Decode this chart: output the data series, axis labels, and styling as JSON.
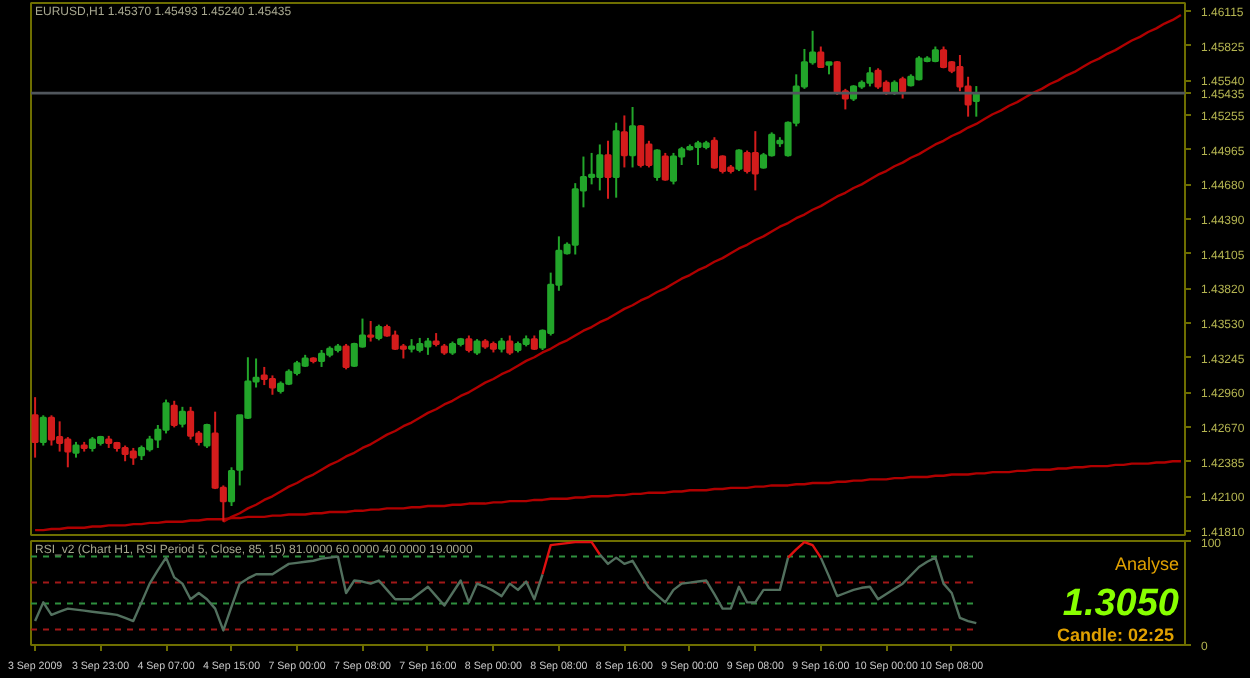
{
  "chart_data": [
    {
      "type": "candlestick",
      "title": "EURUSD,H1  1.45370 1.45493 1.45240 1.45435",
      "categories": [
        null,
        null,
        null,
        null,
        null,
        null,
        null,
        null,
        null,
        null,
        null,
        null,
        null,
        null,
        null,
        null,
        null,
        null,
        null,
        null,
        null,
        null,
        null,
        null,
        null,
        null,
        null,
        null,
        null,
        null,
        null,
        null,
        null,
        null,
        null,
        null,
        null,
        null,
        null,
        null,
        null,
        null,
        null,
        null,
        null,
        null,
        null,
        null,
        null,
        null,
        null,
        null,
        null,
        null,
        null,
        null,
        null,
        null,
        null,
        null,
        null,
        null,
        null,
        null,
        null,
        null,
        null,
        null,
        null,
        null,
        null,
        null,
        null,
        null,
        null,
        null,
        null,
        null,
        null,
        null,
        null,
        null,
        null,
        null,
        null,
        null,
        null,
        null,
        null,
        null,
        null,
        null,
        null,
        null,
        null,
        null,
        null,
        null,
        null,
        null,
        null,
        null,
        null,
        null,
        null,
        null,
        null,
        null,
        null,
        null,
        null,
        null,
        null,
        null,
        null,
        null,
        null,
        null,
        null,
        null,
        null,
        null,
        null,
        null,
        null,
        null,
        null,
        null,
        null,
        null,
        null,
        null,
        null,
        null,
        null,
        null,
        null,
        null,
        null,
        null,
        null
      ],
      "ohlc": [
        [
          1.4277,
          1.4292,
          1.4242,
          1.4255
        ],
        [
          1.4255,
          1.4277,
          1.4252,
          1.4275
        ],
        [
          1.4275,
          1.4277,
          1.4252,
          1.4257
        ],
        [
          1.4259,
          1.4272,
          1.4247,
          1.4254
        ],
        [
          1.4257,
          1.4259,
          1.4234,
          1.4247
        ],
        [
          1.4246,
          1.4255,
          1.4242,
          1.4252
        ],
        [
          1.4252,
          1.4255,
          1.4247,
          1.425
        ],
        [
          1.425,
          1.4259,
          1.4247,
          1.4257
        ],
        [
          1.4254,
          1.426,
          1.4252,
          1.4259
        ],
        [
          1.4257,
          1.426,
          1.425,
          1.4254
        ],
        [
          1.4254,
          1.4255,
          1.4247,
          1.425
        ],
        [
          1.425,
          1.4252,
          1.4239,
          1.4245
        ],
        [
          1.4247,
          1.425,
          1.4236,
          1.4242
        ],
        [
          1.4244,
          1.4252,
          1.424,
          1.425
        ],
        [
          1.4249,
          1.426,
          1.4247,
          1.4257
        ],
        [
          1.4257,
          1.4269,
          1.425,
          1.4265
        ],
        [
          1.4265,
          1.429,
          1.4262,
          1.4287
        ],
        [
          1.4285,
          1.4289,
          1.4267,
          1.4269
        ],
        [
          1.427,
          1.4284,
          1.4267,
          1.428
        ],
        [
          1.428,
          1.4284,
          1.4257,
          1.426
        ],
        [
          1.4262,
          1.4264,
          1.4252,
          1.4255
        ],
        [
          1.4252,
          1.427,
          1.425,
          1.4269
        ],
        [
          1.4262,
          1.428,
          1.4216,
          1.4217
        ],
        [
          1.4217,
          1.4219,
          1.4189,
          1.4206
        ],
        [
          1.4206,
          1.4234,
          1.4202,
          1.4231
        ],
        [
          1.4232,
          1.4277,
          1.4219,
          1.4277
        ],
        [
          1.4275,
          1.4325,
          1.4274,
          1.4305
        ],
        [
          1.4305,
          1.4324,
          1.43,
          1.4308
        ],
        [
          1.431,
          1.4317,
          1.4302,
          1.4307
        ],
        [
          1.4307,
          1.431,
          1.4294,
          1.43
        ],
        [
          1.4297,
          1.4305,
          1.4295,
          1.4303
        ],
        [
          1.4303,
          1.4315,
          1.4302,
          1.4313
        ],
        [
          1.4312,
          1.4322,
          1.431,
          1.432
        ],
        [
          1.4318,
          1.4327,
          1.4317,
          1.4324
        ],
        [
          1.4324,
          1.4325,
          1.432,
          1.4322
        ],
        [
          1.4322,
          1.4331,
          1.4317,
          1.4328
        ],
        [
          1.4327,
          1.4334,
          1.4325,
          1.4332
        ],
        [
          1.4331,
          1.4336,
          1.4329,
          1.4334
        ],
        [
          1.4334,
          1.4336,
          1.4315,
          1.4317
        ],
        [
          1.4318,
          1.4337,
          1.4317,
          1.4336
        ],
        [
          1.4334,
          1.4357,
          1.4333,
          1.4343
        ],
        [
          1.4343,
          1.4355,
          1.4338,
          1.4342
        ],
        [
          1.4341,
          1.4352,
          1.4339,
          1.435
        ],
        [
          1.435,
          1.4352,
          1.4342,
          1.4343
        ],
        [
          1.4343,
          1.4347,
          1.4331,
          1.4332
        ],
        [
          1.4334,
          1.4336,
          1.4324,
          1.4332
        ],
        [
          1.4332,
          1.434,
          1.4329,
          1.4334
        ],
        [
          1.4331,
          1.4341,
          1.4329,
          1.4336
        ],
        [
          1.4334,
          1.4341,
          1.4327,
          1.4338
        ],
        [
          1.4338,
          1.4345,
          1.4334,
          1.4336
        ],
        [
          1.4334,
          1.4336,
          1.4327,
          1.4329
        ],
        [
          1.4329,
          1.4338,
          1.4327,
          1.4336
        ],
        [
          1.4336,
          1.4341,
          1.4334,
          1.434
        ],
        [
          1.434,
          1.4343,
          1.4329,
          1.4331
        ],
        [
          1.4329,
          1.434,
          1.4327,
          1.4338
        ],
        [
          1.4338,
          1.434,
          1.4332,
          1.4334
        ],
        [
          1.4336,
          1.4338,
          1.4329,
          1.4332
        ],
        [
          1.4332,
          1.4341,
          1.4329,
          1.4338
        ],
        [
          1.4338,
          1.4343,
          1.4327,
          1.4329
        ],
        [
          1.4331,
          1.4338,
          1.4329,
          1.4336
        ],
        [
          1.4336,
          1.4343,
          1.4334,
          1.434
        ],
        [
          1.434,
          1.4343,
          1.4331,
          1.4332
        ],
        [
          1.4333,
          1.4348,
          1.4331,
          1.4347
        ],
        [
          1.4345,
          1.4395,
          1.4343,
          1.4385
        ],
        [
          1.4385,
          1.4425,
          1.438,
          1.4413
        ],
        [
          1.4411,
          1.442,
          1.441,
          1.4418
        ],
        [
          1.4418,
          1.4469,
          1.441,
          1.4464
        ],
        [
          1.4463,
          1.4491,
          1.4449,
          1.4474
        ],
        [
          1.4474,
          1.4494,
          1.4468,
          1.4476
        ],
        [
          1.4474,
          1.4501,
          1.4463,
          1.4492
        ],
        [
          1.4492,
          1.4504,
          1.4456,
          1.4474
        ],
        [
          1.4474,
          1.4519,
          1.4457,
          1.4512
        ],
        [
          1.4511,
          1.4525,
          1.4482,
          1.4492
        ],
        [
          1.4492,
          1.4532,
          1.4482,
          1.4516
        ],
        [
          1.4516,
          1.4517,
          1.4482,
          1.4484
        ],
        [
          1.4501,
          1.4504,
          1.4482,
          1.4484
        ],
        [
          1.4474,
          1.4497,
          1.4471,
          1.4496
        ],
        [
          1.4491,
          1.4494,
          1.4471,
          1.4472
        ],
        [
          1.4471,
          1.4494,
          1.4468,
          1.4491
        ],
        [
          1.4491,
          1.4499,
          1.4484,
          1.4497
        ],
        [
          1.4497,
          1.4501,
          1.4496,
          1.4499
        ],
        [
          1.4499,
          1.4504,
          1.4484,
          1.4502
        ],
        [
          1.4499,
          1.4504,
          1.4497,
          1.4502
        ],
        [
          1.4504,
          1.4507,
          1.4481,
          1.4482
        ],
        [
          1.4491,
          1.4492,
          1.4477,
          1.4479
        ],
        [
          1.4482,
          1.4484,
          1.4477,
          1.4479
        ],
        [
          1.4481,
          1.4497,
          1.4479,
          1.4496
        ],
        [
          1.4494,
          1.4496,
          1.4477,
          1.4479
        ],
        [
          1.4494,
          1.4512,
          1.4463,
          1.4477
        ],
        [
          1.4482,
          1.4494,
          1.4481,
          1.4492
        ],
        [
          1.4492,
          1.4511,
          1.4491,
          1.4509
        ],
        [
          1.4502,
          1.4507,
          1.4499,
          1.4504
        ],
        [
          1.4492,
          1.452,
          1.4491,
          1.4519
        ],
        [
          1.4519,
          1.4559,
          1.4516,
          1.4549
        ],
        [
          1.4549,
          1.458,
          1.4547,
          1.4569
        ],
        [
          1.4569,
          1.4595,
          1.4567,
          1.4577
        ],
        [
          1.4577,
          1.4582,
          1.4565,
          1.4565
        ],
        [
          1.4567,
          1.4569,
          1.4559,
          1.4569
        ],
        [
          1.4569,
          1.457,
          1.4542,
          1.4544
        ],
        [
          1.4545,
          1.4547,
          1.453,
          1.4539
        ],
        [
          1.4539,
          1.455,
          1.4537,
          1.4549
        ],
        [
          1.4549,
          1.4554,
          1.4547,
          1.4552
        ],
        [
          1.4552,
          1.4565,
          1.4549,
          1.456
        ],
        [
          1.4562,
          1.4564,
          1.4547,
          1.4549
        ],
        [
          1.4552,
          1.4554,
          1.4542,
          1.4544
        ],
        [
          1.4544,
          1.4554,
          1.4542,
          1.4552
        ],
        [
          1.4555,
          1.4557,
          1.4539,
          1.4545
        ],
        [
          1.455,
          1.4559,
          1.4549,
          1.4557
        ],
        [
          1.4555,
          1.4574,
          1.4554,
          1.4572
        ],
        [
          1.457,
          1.4574,
          1.4569,
          1.4572
        ],
        [
          1.457,
          1.4582,
          1.4569,
          1.4579
        ],
        [
          1.4579,
          1.4582,
          1.4564,
          1.4565
        ],
        [
          1.4569,
          1.457,
          1.456,
          1.4562
        ],
        [
          1.4565,
          1.4575,
          1.4545,
          1.4549
        ],
        [
          1.4549,
          1.4557,
          1.4524,
          1.4534
        ],
        [
          1.4537,
          1.45493,
          1.4524,
          1.45435
        ],
        null,
        null,
        null,
        null,
        null,
        null,
        null,
        null,
        null,
        null,
        null,
        null,
        null,
        null,
        null,
        null,
        null,
        null,
        null,
        null,
        null,
        null,
        null,
        null,
        null
      ],
      "series": [
        {
          "type": "line",
          "values": [
            null,
            null,
            null,
            null,
            null,
            null,
            null,
            null,
            null,
            null,
            null,
            null,
            null,
            null,
            null,
            null,
            null,
            null,
            null,
            null,
            null,
            null,
            null,
            1.4189,
            1.4193,
            1.4196,
            1.42,
            1.4203,
            1.4207,
            1.421,
            1.4214,
            1.4218,
            1.4221,
            1.4225,
            1.4228,
            1.4232,
            1.4236,
            1.4239,
            1.4243,
            1.4246,
            1.425,
            1.4253,
            1.4257,
            1.4261,
            1.4264,
            1.4268,
            1.4271,
            1.4275,
            1.4279,
            1.4282,
            1.4286,
            1.4289,
            1.4293,
            1.4296,
            1.43,
            1.4304,
            1.4307,
            1.4311,
            1.4314,
            1.4318,
            1.4322,
            1.4325,
            1.4329,
            1.4332,
            1.4336,
            1.4339,
            1.4343,
            1.4347,
            1.435,
            1.4354,
            1.4357,
            1.4361,
            1.4365,
            1.4368,
            1.4372,
            1.4375,
            1.4379,
            1.4382,
            1.4386,
            1.439,
            1.4393,
            1.4397,
            1.44,
            1.4404,
            1.4407,
            1.4411,
            1.4415,
            1.4418,
            1.4422,
            1.4425,
            1.4429,
            1.4433,
            1.4436,
            1.444,
            1.4443,
            1.4447,
            1.445,
            1.4454,
            1.4458,
            1.4461,
            1.4465,
            1.4468,
            1.4472,
            1.4476,
            1.4479,
            1.4483,
            1.4486,
            1.449,
            1.4493,
            1.4497,
            1.4501,
            1.4504,
            1.4508,
            1.4511,
            1.4515,
            1.4518,
            1.4522,
            1.4526,
            1.4529,
            1.4533,
            1.4536,
            1.454,
            1.4544,
            1.4547,
            1.4551,
            1.4554,
            1.4558,
            1.4561,
            1.4565,
            1.4569,
            1.4572,
            1.4576,
            1.4579,
            1.4583,
            1.4587,
            1.459,
            1.4594,
            1.4597,
            1.4601,
            1.4604,
            1.4608
          ],
          "color": "#b00000"
        },
        {
          "type": "line",
          "values": [
            1.4182,
            1.4182,
            1.4183,
            1.4183,
            1.4184,
            1.4184,
            1.4184,
            1.4185,
            1.4185,
            1.4186,
            1.4186,
            1.4186,
            1.4187,
            1.4187,
            1.4188,
            1.4188,
            1.4189,
            1.4189,
            1.4189,
            1.419,
            1.419,
            1.4191,
            1.4191,
            1.4191,
            1.4192,
            1.4192,
            1.4193,
            1.4193,
            1.4193,
            1.4194,
            1.4194,
            1.4195,
            1.4195,
            1.4195,
            1.4196,
            1.4196,
            1.4197,
            1.4197,
            1.4197,
            1.4198,
            1.4198,
            1.4199,
            1.4199,
            1.42,
            1.42,
            1.42,
            1.4201,
            1.4201,
            1.4202,
            1.4202,
            1.4202,
            1.4203,
            1.4203,
            1.4204,
            1.4204,
            1.4204,
            1.4205,
            1.4205,
            1.4206,
            1.4206,
            1.4206,
            1.4207,
            1.4207,
            1.4208,
            1.4208,
            1.4208,
            1.4209,
            1.4209,
            1.421,
            1.421,
            1.421,
            1.4211,
            1.4211,
            1.4212,
            1.4212,
            1.4213,
            1.4213,
            1.4213,
            1.4214,
            1.4214,
            1.4215,
            1.4215,
            1.4215,
            1.4216,
            1.4216,
            1.4217,
            1.4217,
            1.4217,
            1.4218,
            1.4218,
            1.4219,
            1.4219,
            1.4219,
            1.422,
            1.422,
            1.4221,
            1.4221,
            1.4221,
            1.4222,
            1.4222,
            1.4223,
            1.4223,
            1.4224,
            1.4224,
            1.4224,
            1.4225,
            1.4225,
            1.4226,
            1.4226,
            1.4226,
            1.4227,
            1.4227,
            1.4228,
            1.4228,
            1.4228,
            1.4229,
            1.4229,
            1.423,
            1.423,
            1.423,
            1.4231,
            1.4231,
            1.4232,
            1.4232,
            1.4232,
            1.4233,
            1.4233,
            1.4234,
            1.4234,
            1.4235,
            1.4235,
            1.4235,
            1.4236,
            1.4236,
            1.4237,
            1.4237,
            1.4237,
            1.4238,
            1.4238,
            1.4239,
            1.4239
          ],
          "color": "#b00000"
        }
      ],
      "ylim": [
        1.4178,
        1.4618
      ],
      "yticks": [
        {
          "value": 1.4181,
          "label": "1.41810"
        },
        {
          "value": 1.421,
          "label": "1.42100"
        },
        {
          "value": 1.42385,
          "label": "1.42385"
        },
        {
          "value": 1.4267,
          "label": "1.42670"
        },
        {
          "value": 1.4296,
          "label": "1.42960"
        },
        {
          "value": 1.43245,
          "label": "1.43245"
        },
        {
          "value": 1.4353,
          "label": "1.43530"
        },
        {
          "value": 1.4382,
          "label": "1.43820"
        },
        {
          "value": 1.44105,
          "label": "1.44105"
        },
        {
          "value": 1.4439,
          "label": "1.44390"
        },
        {
          "value": 1.4468,
          "label": "1.44680"
        },
        {
          "value": 1.44965,
          "label": "1.44965"
        },
        {
          "value": 1.45255,
          "label": "1.45255"
        },
        {
          "value": 1.4554,
          "label": "1.45540"
        },
        {
          "value": 1.45825,
          "label": "1.45825"
        },
        {
          "value": 1.46115,
          "label": "1.46115"
        }
      ],
      "ref_lines": [
        {
          "axis": "y",
          "value": 1.45435,
          "label": "1.45435",
          "color": "#50565c"
        }
      ],
      "tick_labels": "y"
    },
    {
      "type": "line",
      "title": "RSI_v2 (Chart H1,  RSI Period 5,  Close,  85,  15)  81.0000 60.0000 40.0000 19.0000",
      "series": [
        {
          "values": [
            23,
            41,
            29,
            32,
            35,
            34,
            33,
            32,
            31,
            30,
            29,
            26,
            23,
            41,
            59,
            72,
            84,
            65,
            59,
            44,
            50,
            44,
            35,
            14,
            37,
            59,
            64,
            68,
            68,
            68,
            73,
            78,
            79,
            80,
            81,
            83,
            84,
            85,
            50,
            62,
            61,
            59,
            62,
            53,
            44,
            44,
            44,
            50,
            56,
            47,
            38,
            50,
            62,
            41,
            59,
            56,
            52,
            47,
            59,
            53,
            61,
            44,
            68,
            null,
            null,
            null,
            null,
            null,
            null,
            87,
            78,
            84,
            78,
            81,
            68,
            55,
            48,
            41,
            53,
            59,
            60,
            61,
            62,
            49,
            35,
            35,
            56,
            41,
            41,
            53,
            53,
            53,
            84,
            null,
            null,
            null,
            84,
            66,
            47,
            50,
            53,
            55,
            56,
            44,
            49,
            54,
            59,
            67,
            75,
            80,
            84,
            59,
            50,
            26,
            23,
            21,
            null,
            null,
            null,
            null,
            null,
            null,
            null,
            null,
            null,
            null,
            null,
            null,
            null,
            null,
            null,
            null,
            null,
            null,
            null,
            null,
            null,
            null,
            null,
            null,
            null
          ],
          "color": "#52705e"
        },
        {
          "values": [
            null,
            null,
            null,
            null,
            null,
            null,
            null,
            null,
            null,
            null,
            null,
            null,
            null,
            null,
            null,
            null,
            null,
            null,
            null,
            null,
            null,
            null,
            null,
            null,
            null,
            null,
            null,
            null,
            null,
            null,
            null,
            null,
            null,
            null,
            null,
            null,
            null,
            null,
            null,
            null,
            null,
            null,
            null,
            null,
            null,
            null,
            null,
            null,
            null,
            null,
            null,
            null,
            null,
            null,
            null,
            null,
            null,
            null,
            null,
            null,
            null,
            null,
            68,
            96,
            97,
            98,
            99,
            99,
            99,
            87,
            null,
            null,
            null,
            null,
            null,
            null,
            null,
            null,
            null,
            null,
            null,
            null,
            null,
            null,
            null,
            null,
            null,
            null,
            null,
            null,
            null,
            null,
            84,
            92,
            99,
            96,
            84,
            null,
            null,
            null,
            null,
            null,
            null,
            null,
            null,
            null,
            null,
            null,
            null,
            null,
            null,
            null,
            null,
            null,
            null,
            null,
            null,
            null,
            null,
            null,
            null,
            null,
            null,
            null,
            null,
            null,
            null,
            null,
            null,
            null,
            null,
            null,
            null,
            null,
            null,
            null,
            null,
            null,
            null,
            null,
            null
          ],
          "color": "#e01010"
        }
      ],
      "categories": [
        "3 Sep 2009",
        null,
        null,
        null,
        null,
        null,
        null,
        null,
        "3 Sep 23:00",
        null,
        null,
        null,
        null,
        null,
        null,
        null,
        "4 Sep 07:00",
        null,
        null,
        null,
        null,
        null,
        null,
        null,
        "4 Sep 15:00",
        null,
        null,
        null,
        null,
        null,
        null,
        null,
        "7 Sep 00:00",
        null,
        null,
        null,
        null,
        null,
        null,
        null,
        "7 Sep 08:00",
        null,
        null,
        null,
        null,
        null,
        null,
        null,
        "7 Sep 16:00",
        null,
        null,
        null,
        null,
        null,
        null,
        null,
        "8 Sep 00:00",
        null,
        null,
        null,
        null,
        null,
        null,
        null,
        "8 Sep 08:00",
        null,
        null,
        null,
        null,
        null,
        null,
        null,
        "8 Sep 16:00",
        null,
        null,
        null,
        null,
        null,
        null,
        null,
        "9 Sep 00:00",
        null,
        null,
        null,
        null,
        null,
        null,
        null,
        "9 Sep 08:00",
        null,
        null,
        null,
        null,
        null,
        null,
        null,
        "9 Sep 16:00",
        null,
        null,
        null,
        null,
        null,
        null,
        null,
        "10 Sep 00:00",
        null,
        null,
        null,
        null,
        null,
        null,
        null,
        "10 Sep 08:00",
        null,
        null,
        null,
        null,
        null,
        null,
        null,
        null,
        null,
        null,
        null,
        null,
        null,
        null,
        null,
        null,
        null,
        null,
        null,
        null,
        null,
        null,
        null,
        null,
        null,
        null,
        null,
        null
      ],
      "ylim": [
        0,
        100
      ],
      "yticks": [
        0,
        100
      ],
      "ref_lines": [
        {
          "axis": "y",
          "value": 85,
          "color": "#2f8f3f",
          "line_style": "dashed"
        },
        {
          "axis": "y",
          "value": 60,
          "color": "#a01818",
          "line_style": "dashed"
        },
        {
          "axis": "y",
          "value": 40,
          "color": "#2f8f3f",
          "line_style": "dashed"
        },
        {
          "axis": "y",
          "value": 15,
          "color": "#a01818",
          "line_style": "dashed"
        }
      ],
      "annotations": [
        "Analyse",
        "1.3050",
        "Candle:  02:25"
      ]
    }
  ]
}
